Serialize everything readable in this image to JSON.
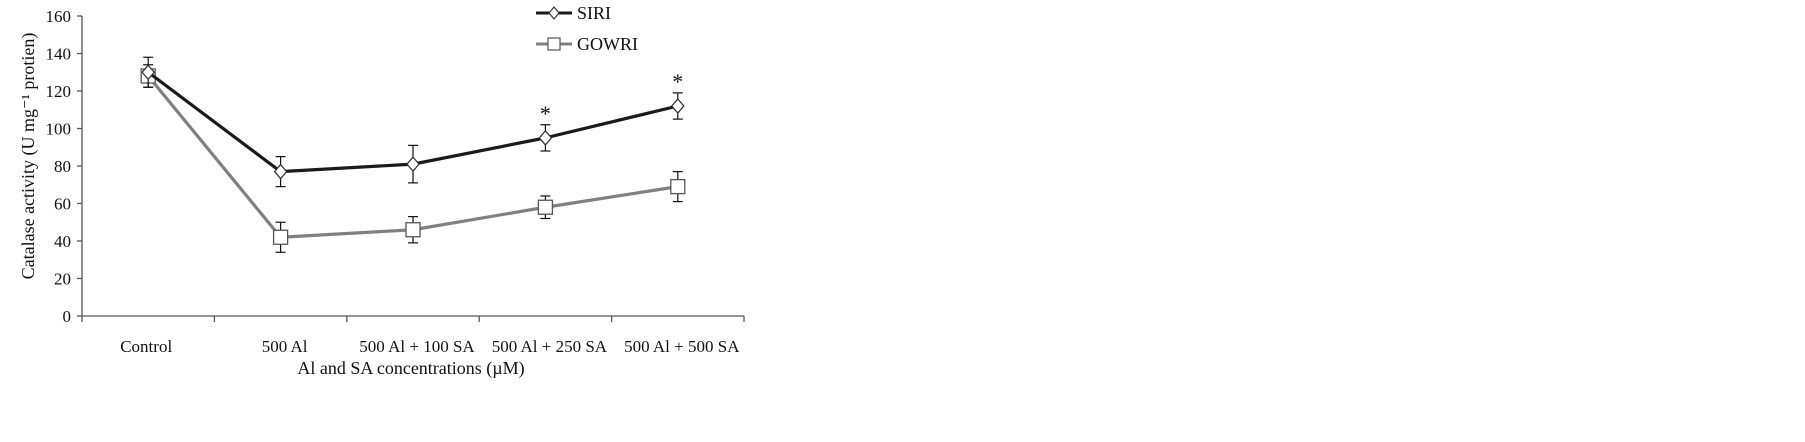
{
  "chart_data": {
    "type": "line",
    "categories": [
      "Control",
      "500 Al",
      "500 Al + 100 SA",
      "500 Al + 250 SA",
      "500 Al + 500 SA"
    ],
    "xlabel": "Al and SA concentrations (µM)",
    "ylabel": "Catalase activity (U mg⁻¹ protien)",
    "ylim": [
      0,
      160
    ],
    "yticks": [
      0,
      20,
      40,
      60,
      80,
      100,
      120,
      140,
      160
    ],
    "grid": false,
    "legend_position": "top-right",
    "series": [
      {
        "name": "SIRI",
        "marker": "diamond",
        "color": "#1a1a1a",
        "values": [
          130,
          77,
          81,
          95,
          112
        ],
        "errors": [
          8,
          8,
          10,
          7,
          7
        ],
        "significance": [
          "",
          "",
          "",
          "*",
          "*"
        ]
      },
      {
        "name": "GOWRI",
        "marker": "square",
        "color": "#808080",
        "values": [
          128,
          42,
          46,
          58,
          69
        ],
        "errors": [
          6,
          8,
          7,
          6,
          8
        ],
        "significance": [
          "",
          "",
          "",
          "",
          ""
        ]
      }
    ]
  }
}
